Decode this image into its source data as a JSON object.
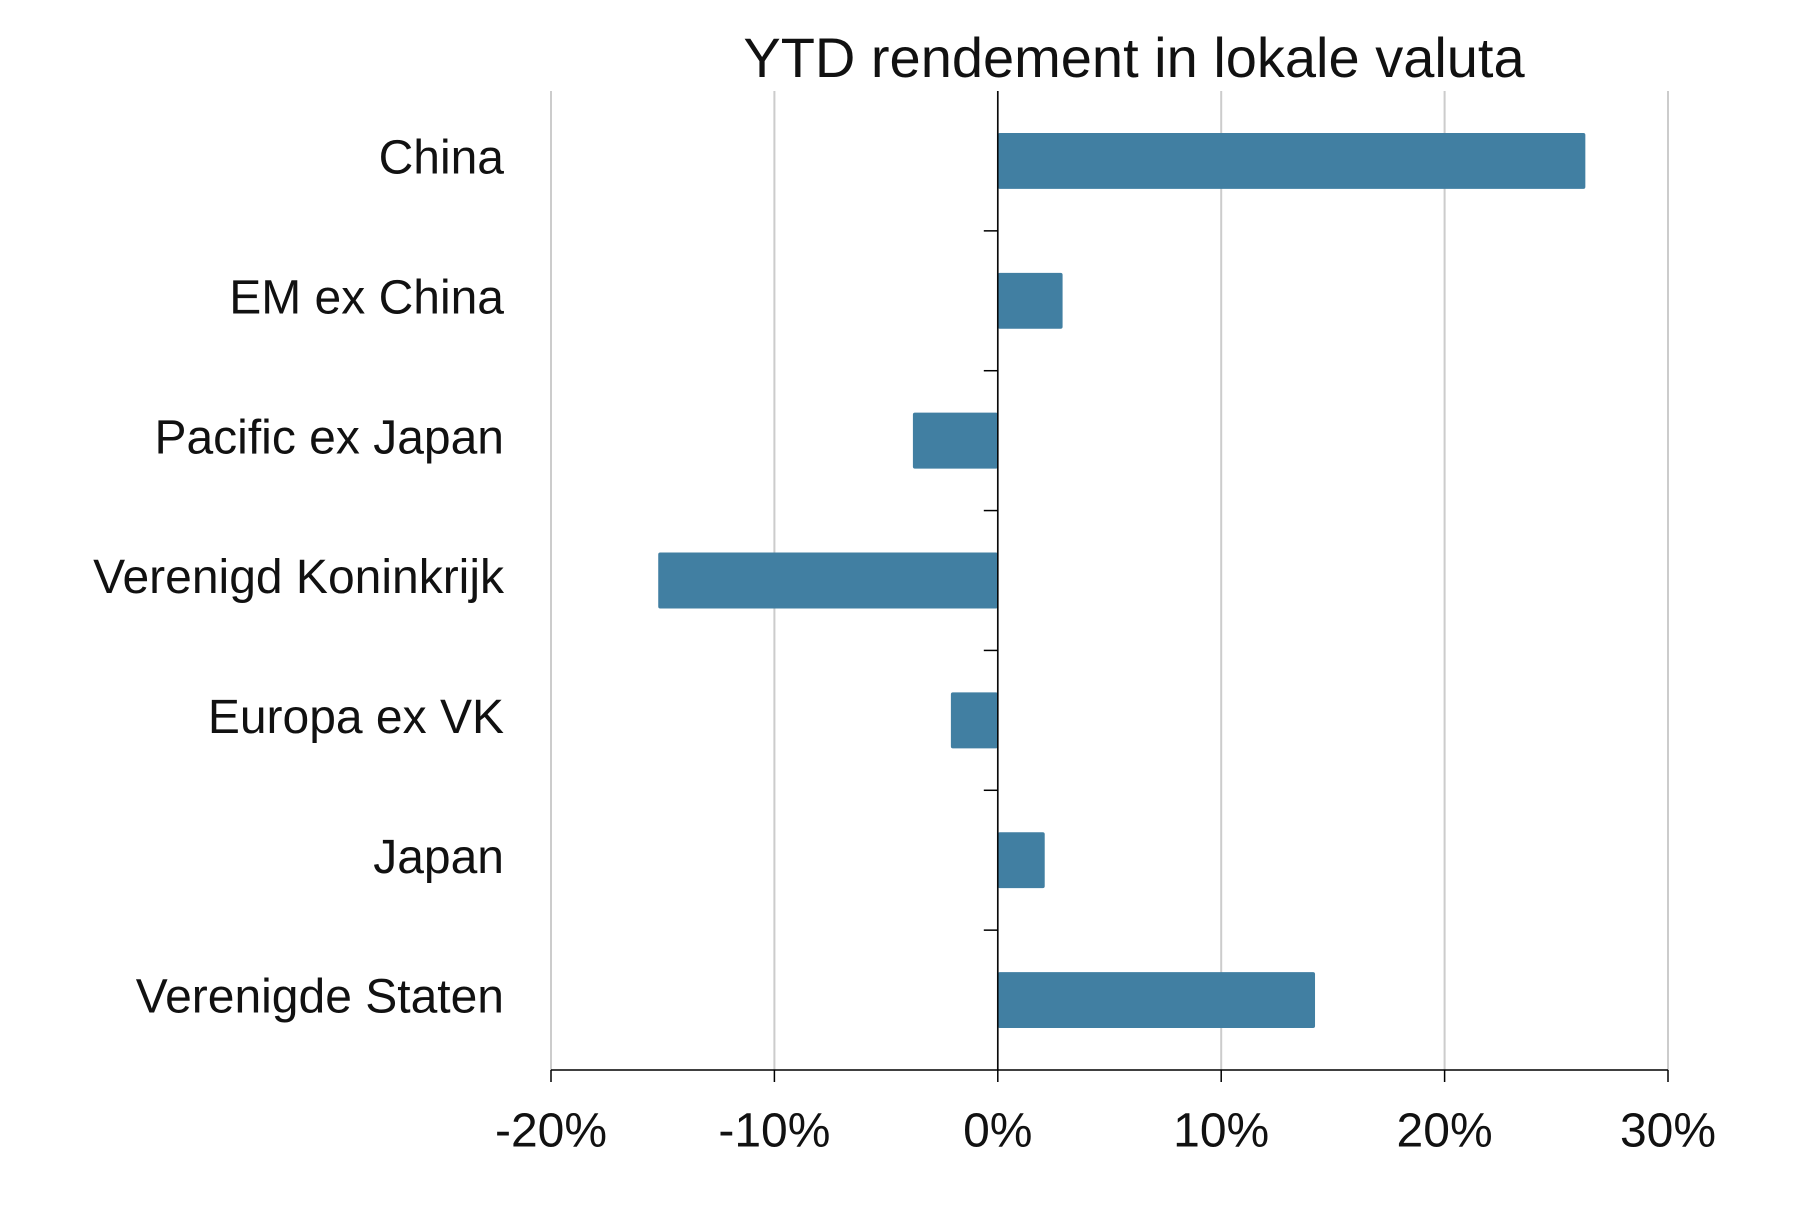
{
  "chart_data": {
    "type": "bar",
    "orientation": "horizontal",
    "title": "YTD rendement in lokale valuta",
    "categories": [
      "China",
      "EM ex China",
      "Pacific ex Japan",
      "Verenigd Koninkrijk",
      "Europa ex VK",
      "Japan",
      "Verenigde Staten"
    ],
    "values": [
      26.3,
      2.9,
      -3.8,
      -15.2,
      -2.1,
      2.1,
      14.2
    ],
    "color": "#417fa2",
    "xlim": [
      -20,
      30
    ],
    "xticks": [
      {
        "value": -20,
        "label": "-20%"
      },
      {
        "value": -10,
        "label": "-10%"
      },
      {
        "value": 0,
        "label": "0%"
      },
      {
        "value": 10,
        "label": "10%"
      },
      {
        "value": 20,
        "label": "20%"
      },
      {
        "value": 30,
        "label": "30%"
      }
    ],
    "grid": true
  }
}
